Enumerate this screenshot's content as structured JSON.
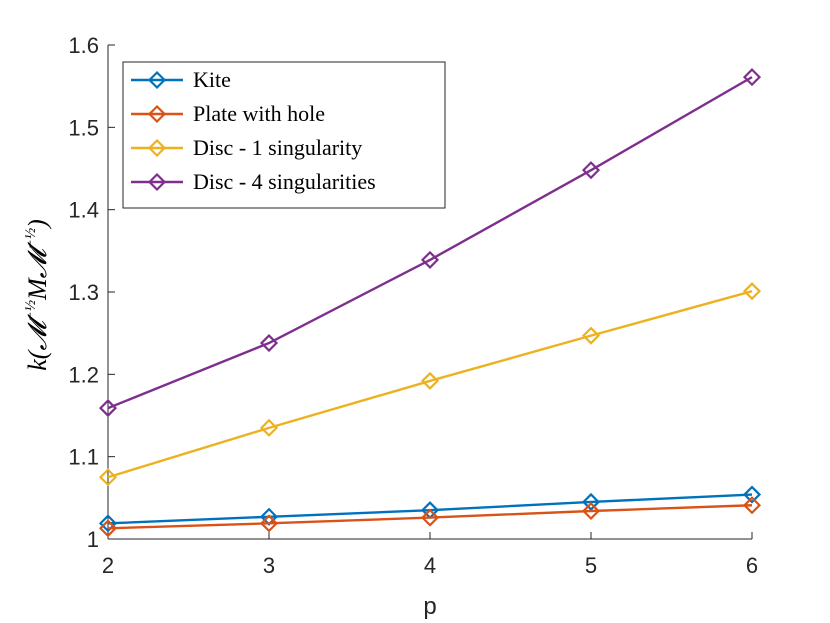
{
  "chart_data": {
    "type": "line",
    "title": "",
    "xlabel": "p",
    "ylabel": {
      "k": "k",
      "open": "(",
      "m1": "𝓜",
      "exp1": "−½",
      "mid": "M𝓜",
      "exp2": "−½",
      "close": ")"
    },
    "x": [
      2,
      3,
      4,
      5,
      6
    ],
    "xlim": [
      2,
      6
    ],
    "ylim": [
      1,
      1.6
    ],
    "xticks": [
      "2",
      "3",
      "4",
      "5",
      "6"
    ],
    "yticks": [
      "1",
      "1.1",
      "1.2",
      "1.3",
      "1.4",
      "1.5",
      "1.6"
    ],
    "grid": false,
    "legend_position": "top-left",
    "series": [
      {
        "name": "Kite",
        "color": "#0072BD",
        "marker": "diamond",
        "values": [
          1.019,
          1.027,
          1.035,
          1.045,
          1.054
        ]
      },
      {
        "name": "Plate with hole",
        "color": "#D95319",
        "marker": "diamond",
        "values": [
          1.013,
          1.019,
          1.026,
          1.034,
          1.041
        ]
      },
      {
        "name": "Disc - 1 singularity",
        "color": "#EDB120",
        "marker": "diamond",
        "values": [
          1.075,
          1.135,
          1.192,
          1.247,
          1.301
        ]
      },
      {
        "name": "Disc - 4 singularities",
        "color": "#7E2F8E",
        "marker": "diamond",
        "values": [
          1.159,
          1.238,
          1.339,
          1.448,
          1.561
        ]
      }
    ]
  }
}
